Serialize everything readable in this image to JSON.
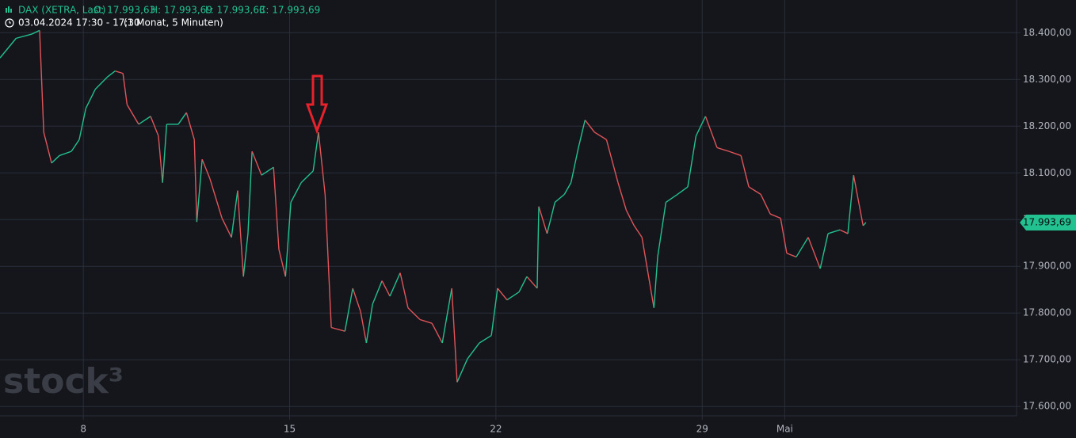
{
  "chart_data": {
    "type": "line",
    "symbol": "DAX (XETRA, Last)",
    "open": "O: 17.993,63",
    "high": "H: 17.993,69",
    "low": "L: 17.993,63",
    "close": "C: 17.993,69",
    "date_range": "03.04.2024 17:30 - 17:30",
    "period": "(1 Monat, 5 Minuten)",
    "watermark": "stock³",
    "last_price": {
      "value": 17993.69,
      "label": "17.993,69"
    },
    "up_color": "#22c18f",
    "down_color": "#e0555a",
    "grid": true,
    "x": [
      -2.02,
      -1.63,
      -1.25,
      -1.06,
      -0.96,
      -0.77,
      -0.58,
      -0.29,
      -0.1,
      0.06,
      0.29,
      0.58,
      0.77,
      0.96,
      1.06,
      1.34,
      1.63,
      1.82,
      1.92,
      2.02,
      2.3,
      2.5,
      2.69,
      2.75,
      2.88,
      3.07,
      3.36,
      3.59,
      3.74,
      3.88,
      3.99,
      4.09,
      4.32,
      4.61,
      4.74,
      4.9,
      5.03,
      5.28,
      5.57,
      5.7,
      5.86,
      6.01,
      6.34,
      6.53,
      6.72,
      6.86,
      7.01,
      7.24,
      7.43,
      7.68,
      7.87,
      8.16,
      8.45,
      8.7,
      8.93,
      9.06,
      9.31,
      9.6,
      9.89,
      10.04,
      10.27,
      10.56,
      10.75,
      11.0,
      11.04,
      11.24,
      11.43,
      11.66,
      11.82,
      12.0,
      12.16,
      12.39,
      12.68,
      12.96,
      13.16,
      13.35,
      13.54,
      13.83,
      13.92,
      14.12,
      14.4,
      14.65,
      14.85,
      15.08,
      15.36,
      15.65,
      15.94,
      16.13,
      16.42,
      16.65,
      16.9,
      17.05,
      17.28,
      17.57,
      17.86,
      18.05,
      18.34,
      18.53,
      18.67,
      18.9,
      18.97
    ],
    "values": [
      18346,
      18388,
      18397,
      18405,
      18187,
      18121,
      18137,
      18146,
      18171,
      18238,
      18279,
      18305,
      18318,
      18313,
      18246,
      18204,
      18221,
      18179,
      18079,
      18204,
      18204,
      18229,
      18171,
      17995,
      18129,
      18087,
      18003,
      17962,
      18062,
      17878,
      17970,
      18146,
      18095,
      18112,
      17936,
      17878,
      18037,
      18079,
      18104,
      18187,
      18054,
      17769,
      17761,
      17853,
      17803,
      17736,
      17819,
      17869,
      17836,
      17886,
      17811,
      17786,
      17778,
      17736,
      17853,
      17652,
      17702,
      17736,
      17752,
      17853,
      17828,
      17845,
      17878,
      17853,
      18028,
      17970,
      18037,
      18054,
      18079,
      18154,
      18213,
      18187,
      18171,
      18079,
      18020,
      17987,
      17962,
      17811,
      17920,
      18037,
      18054,
      18070,
      18179,
      18221,
      18154,
      18146,
      18137,
      18070,
      18054,
      18012,
      18003,
      17928,
      17920,
      17962,
      17895,
      17970,
      17978,
      17970,
      18095,
      17987,
      17994
    ],
    "xlim": [
      -2.02,
      22.62
    ],
    "xticks": [
      {
        "value": 0,
        "label": "8"
      },
      {
        "value": 5,
        "label": "15"
      },
      {
        "value": 10,
        "label": "22"
      },
      {
        "value": 15,
        "label": "29"
      },
      {
        "value": 17,
        "label": "Mai"
      }
    ],
    "ylim": [
      17580,
      18470
    ],
    "yticks": [
      {
        "value": 17600,
        "label": "17.600,00"
      },
      {
        "value": 17700,
        "label": "17.700,00"
      },
      {
        "value": 17800,
        "label": "17.800,00"
      },
      {
        "value": 17900,
        "label": "17.900,00"
      },
      {
        "value": 18000,
        "label": "18.000,00"
      },
      {
        "value": 18100,
        "label": "18.100,00"
      },
      {
        "value": 18200,
        "label": "18.200,00"
      },
      {
        "value": 18300,
        "label": "18.300,00"
      },
      {
        "value": 18400,
        "label": "18.400,00"
      }
    ]
  }
}
